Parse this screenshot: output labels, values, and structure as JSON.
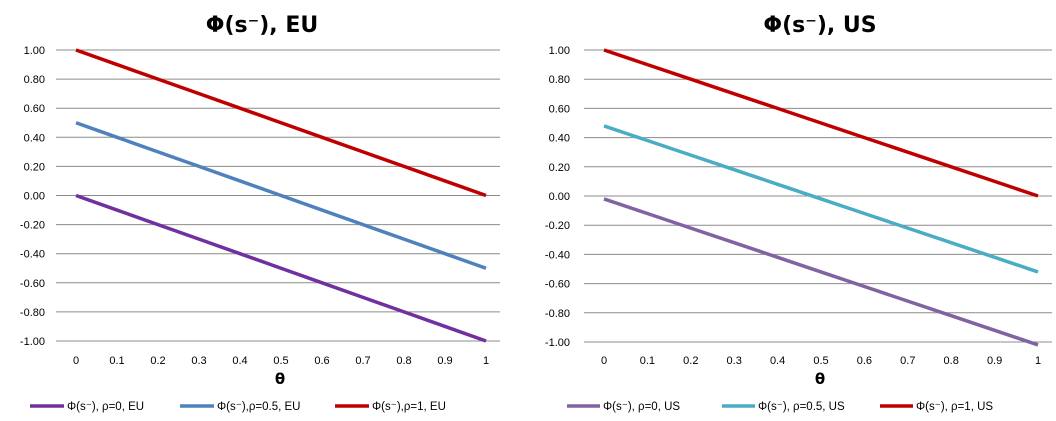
{
  "chart_data": [
    {
      "type": "line",
      "title": "Φ(s⁻), EU",
      "xlabel": "θ",
      "ylabel": "",
      "x": [
        0,
        0.1,
        0.2,
        0.3,
        0.4,
        0.5,
        0.6,
        0.7,
        0.8,
        0.9,
        1
      ],
      "x_tick_labels": [
        "0",
        "0.1",
        "0.2",
        "0.3",
        "0.4",
        "0.5",
        "0.6",
        "0.7",
        "0.8",
        "0.9",
        "1"
      ],
      "y_tick_labels": [
        "1.00",
        "0.80",
        "0.60",
        "0.40",
        "0.20",
        "0.00",
        "-0.20",
        "-0.40",
        "-0.60",
        "-0.80",
        "-1.00"
      ],
      "xlim": [
        0,
        1
      ],
      "ylim": [
        -1,
        1
      ],
      "grid": "horizontal",
      "legend_position": "bottom",
      "series": [
        {
          "name": "Φ(s⁻), ρ=0, EU",
          "color": "#7030a0",
          "values": [
            0,
            -0.1,
            -0.2,
            -0.3,
            -0.4,
            -0.5,
            -0.6,
            -0.7,
            -0.8,
            -0.9,
            -1.0
          ]
        },
        {
          "name": "Φ(s⁻),ρ=0.5, EU",
          "color": "#4f81bd",
          "values": [
            0.5,
            0.4,
            0.3,
            0.2,
            0.1,
            0.0,
            -0.1,
            -0.2,
            -0.3,
            -0.4,
            -0.5
          ]
        },
        {
          "name": "Φ(s⁻),ρ=1, EU",
          "color": "#c00000",
          "values": [
            1.0,
            0.9,
            0.8,
            0.7,
            0.6,
            0.5,
            0.4,
            0.3,
            0.2,
            0.1,
            0.0
          ]
        }
      ]
    },
    {
      "type": "line",
      "title": "Φ(s⁻),  US",
      "xlabel": "θ",
      "ylabel": "",
      "x": [
        0,
        0.1,
        0.2,
        0.3,
        0.4,
        0.5,
        0.6,
        0.7,
        0.8,
        0.9,
        1
      ],
      "x_tick_labels": [
        "0",
        "0.1",
        "0.2",
        "0.3",
        "0.4",
        "0.5",
        "0.6",
        "0.7",
        "0.8",
        "0.9",
        "1"
      ],
      "y_tick_labels": [
        "1.00",
        "0.80",
        "0.60",
        "0.40",
        "0.20",
        "0.00",
        "-0.20",
        "-0.40",
        "-0.60",
        "-0.80",
        "-1.00"
      ],
      "xlim": [
        0,
        1
      ],
      "ylim": [
        -1,
        1
      ],
      "grid": "horizontal",
      "legend_position": "bottom",
      "series": [
        {
          "name": "Φ(s⁻), ρ=0, US",
          "color": "#8064a2",
          "values": [
            -0.02,
            -0.12,
            -0.22,
            -0.32,
            -0.42,
            -0.52,
            -0.62,
            -0.72,
            -0.82,
            -0.92,
            -1.02
          ]
        },
        {
          "name": "Φ(s⁻), ρ=0.5, US",
          "color": "#4bacc6",
          "values": [
            0.48,
            0.38,
            0.28,
            0.18,
            0.08,
            -0.02,
            -0.12,
            -0.22,
            -0.32,
            -0.42,
            -0.52
          ]
        },
        {
          "name": "Φ(s⁻), ρ=1, US",
          "color": "#c00000",
          "values": [
            1.0,
            0.9,
            0.8,
            0.7,
            0.6,
            0.5,
            0.4,
            0.3,
            0.2,
            0.1,
            0.0
          ]
        }
      ]
    }
  ]
}
